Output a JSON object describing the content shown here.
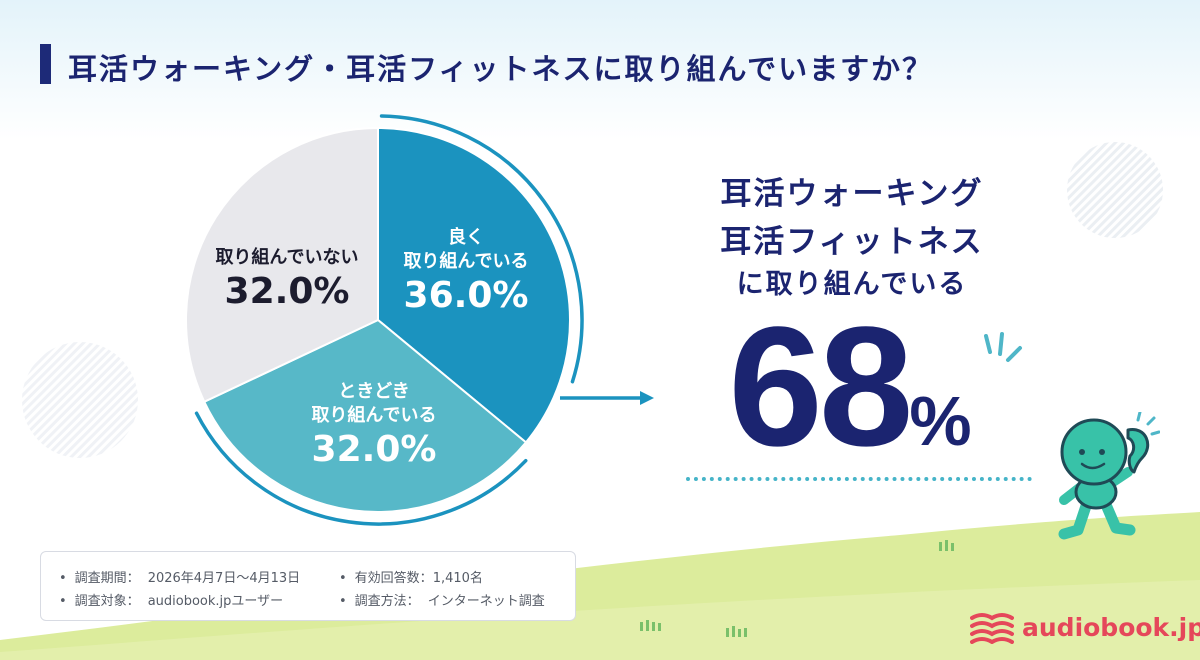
{
  "title": "耳活ウォーキング・耳活フィットネスに取り組んでいますか？",
  "chart_data": {
    "type": "pie",
    "slices": [
      {
        "label_line1": "良く",
        "label_line2": "取り組んでいる",
        "value": 36.0,
        "value_text": "36.0%",
        "color": "#1b93bf"
      },
      {
        "label_line1": "ときどき",
        "label_line2": "取り組んでいる",
        "value": 32.0,
        "value_text": "32.0%",
        "color": "#57b8c8"
      },
      {
        "label_line1": "取り組んでいない",
        "label_line2": "",
        "value": 32.0,
        "value_text": "32.0%",
        "color": "#e8e8ec"
      }
    ]
  },
  "summary": {
    "line1": "耳活ウォーキング",
    "line2": "耳活フィットネス",
    "line3": "に取り組んでいる",
    "number": "68",
    "unit": "%"
  },
  "survey": {
    "period_label": "調査期間：",
    "period_value": "2026年4月7日〜4月13日",
    "target_label": "調査対象：",
    "target_value": "audiobook.jpユーザー",
    "responses_label": "有効回答数：",
    "responses_value": "1,410名",
    "method_label": "調査方法：",
    "method_value": "インターネット調査"
  },
  "brand": "audiobook.jp",
  "colors": {
    "navy": "#1b2470",
    "accent_blue": "#1b93bf",
    "teal": "#57b8c8",
    "gray": "#e8e8ec",
    "brand_red": "#e5475a",
    "grass": "#dcec9c",
    "mascot": "#38c2a8"
  },
  "icons": {
    "arrow": "right-arrow-icon",
    "logo": "book-stack-icon",
    "mascot": "walking-mascot-icon"
  }
}
